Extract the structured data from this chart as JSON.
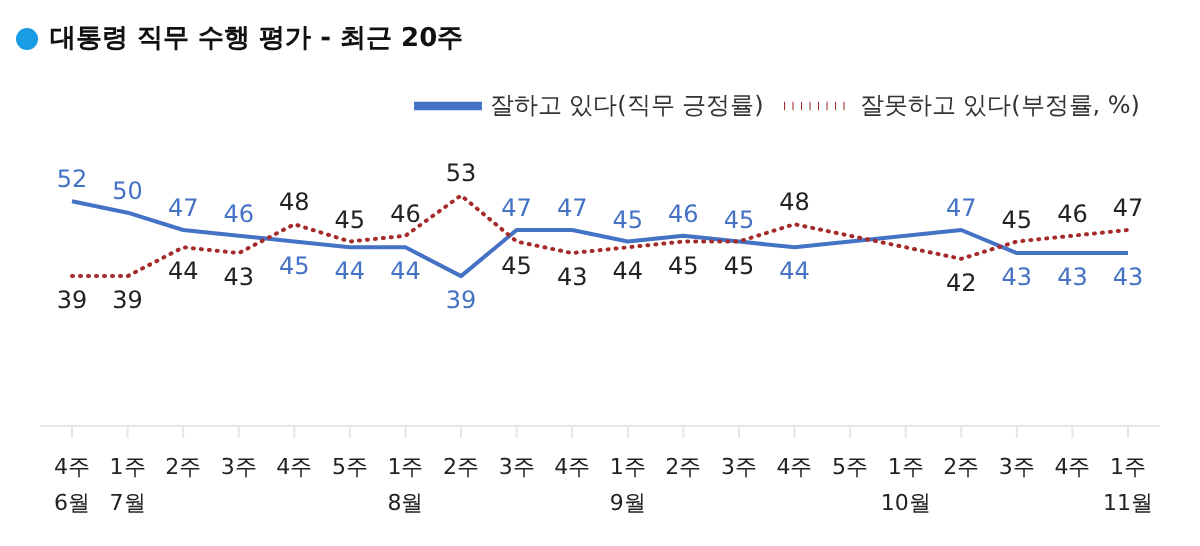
{
  "chart_data": {
    "type": "line",
    "title": "대통령 직무 수행 평가 - 최근 20주",
    "categories": [
      "4주\n6월",
      "1주\n7월",
      "2주",
      "3주",
      "4주",
      "5주",
      "1주\n8월",
      "2주",
      "3주",
      "4주",
      "1주\n9월",
      "2주",
      "3주",
      "4주",
      "5주",
      "1주\n10월",
      "2주",
      "3주",
      "4주",
      "1주\n11월"
    ],
    "series": [
      {
        "name": "잘하고 있다(직무 긍정률)",
        "color": "#4472c4",
        "line_style": "solid",
        "values": [
          52,
          50,
          47,
          46,
          45,
          44,
          44,
          39,
          47,
          47,
          45,
          46,
          45,
          44,
          null,
          null,
          47,
          43,
          43,
          43
        ]
      },
      {
        "name": "잘못하고 있다(부정률, %)",
        "color": "#a52a2a",
        "line_style": "dotted",
        "values": [
          39,
          39,
          44,
          43,
          48,
          45,
          46,
          53,
          45,
          43,
          44,
          45,
          45,
          48,
          null,
          null,
          42,
          45,
          46,
          47
        ]
      }
    ],
    "data_labels": true,
    "legend": "top right",
    "grid": false,
    "marker": "none"
  }
}
